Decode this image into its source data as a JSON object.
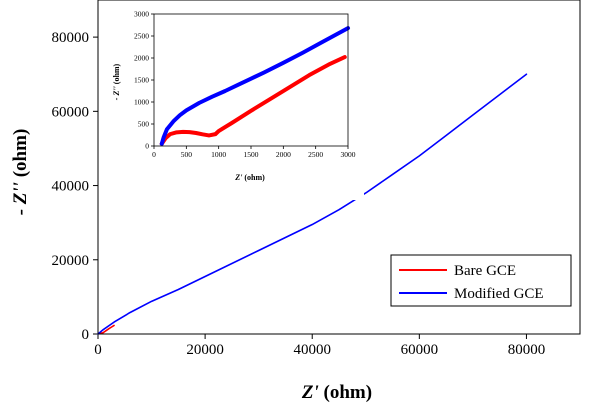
{
  "chart_data": [
    {
      "type": "line",
      "panel": "main",
      "xlabel_italic": "Z'",
      "xlabel_unit": "(ohm)",
      "ylabel_italic": "- Z''",
      "ylabel_unit": "(ohm)",
      "xlim": [
        0,
        90000
      ],
      "ylim": [
        0,
        90000
      ],
      "xticks": [
        0,
        20000,
        40000,
        60000,
        80000
      ],
      "yticks": [
        0,
        20000,
        40000,
        60000,
        80000
      ],
      "xtick_labels": [
        "0",
        "20000",
        "40000",
        "60000",
        "80000"
      ],
      "ytick_labels": [
        "0",
        "20000",
        "40000",
        "60000",
        "80000"
      ],
      "grid": false,
      "legend_position": "bottom-right",
      "series": [
        {
          "name": "Bare GCE",
          "color": "#ff0000",
          "x": [
            100,
            300,
            500,
            800,
            1000,
            1500,
            2000,
            2500,
            3000
          ],
          "y": [
            100,
            250,
            300,
            250,
            400,
            900,
            1400,
            1850,
            2300
          ]
        },
        {
          "name": "Modified GCE",
          "color": "#0000ff",
          "x": [
            0,
            1000,
            3000,
            6000,
            10000,
            15000,
            20000,
            30000,
            40000,
            45000,
            50000,
            55000,
            60000,
            65000,
            70000,
            75000,
            80000
          ],
          "y": [
            0,
            1200,
            3200,
            5800,
            8800,
            12000,
            15500,
            22500,
            29500,
            33500,
            38000,
            43000,
            48000,
            53500,
            59000,
            64500,
            70000
          ]
        }
      ]
    },
    {
      "type": "line",
      "panel": "inset",
      "xlabel_italic": "Z'",
      "xlabel_unit": "(ohm)",
      "ylabel_italic": "- Z''",
      "ylabel_unit": "(ohm)",
      "xlim": [
        0,
        3000
      ],
      "ylim": [
        0,
        3000
      ],
      "xticks": [
        0,
        500,
        1000,
        1500,
        2000,
        2500,
        3000
      ],
      "yticks": [
        0,
        500,
        1000,
        1500,
        2000,
        2500,
        3000
      ],
      "xtick_labels": [
        "0",
        "500",
        "1000",
        "1500",
        "2000",
        "2500",
        "3000"
      ],
      "ytick_labels": [
        "0",
        "500",
        "1000",
        "1500",
        "2000",
        "2500",
        "3000"
      ],
      "grid": false,
      "series": [
        {
          "name": "Bare GCE",
          "color": "#ff0000",
          "x": [
            120,
            180,
            250,
            350,
            450,
            550,
            650,
            750,
            850,
            950,
            1000,
            1200,
            1500,
            1800,
            2100,
            2400,
            2700,
            2950
          ],
          "y": [
            50,
            180,
            270,
            310,
            320,
            315,
            295,
            265,
            240,
            270,
            340,
            520,
            800,
            1070,
            1340,
            1610,
            1850,
            2020
          ]
        },
        {
          "name": "Modified GCE",
          "color": "#0000ff",
          "x": [
            120,
            150,
            200,
            300,
            400,
            500,
            700,
            900,
            1100,
            1300,
            1500,
            1700,
            2000,
            2300,
            2600,
            2900,
            3000
          ],
          "y": [
            50,
            200,
            380,
            560,
            700,
            810,
            980,
            1120,
            1250,
            1390,
            1530,
            1670,
            1890,
            2120,
            2360,
            2600,
            2680
          ]
        }
      ]
    }
  ]
}
